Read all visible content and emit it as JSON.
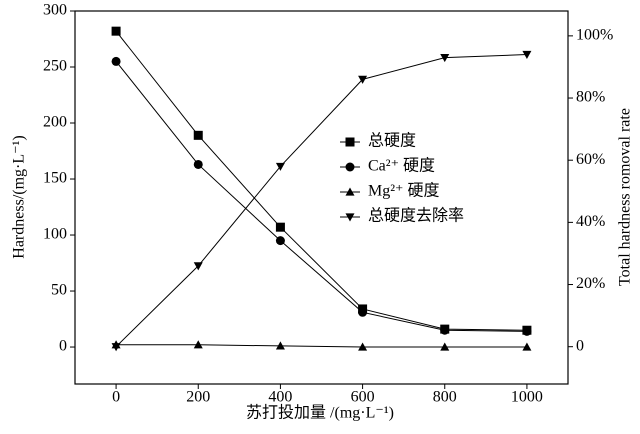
{
  "chart_data": {
    "type": "line",
    "x_label": "苏打投加量 /(mg·L⁻¹)",
    "y_label": "Hardness/(mg·L⁻¹)",
    "y2_label": "Total hardness romoval rate",
    "x": [
      0,
      200,
      400,
      600,
      800,
      1000
    ],
    "xlim": [
      -100,
      1100
    ],
    "xticks": [
      0,
      200,
      400,
      600,
      800,
      1000
    ],
    "ylim": [
      -33,
      300
    ],
    "yticks": [
      0,
      50,
      100,
      150,
      200,
      250,
      300
    ],
    "y2lim": [
      -12,
      108
    ],
    "y2ticks": [
      {
        "value": 0,
        "label": "0"
      },
      {
        "value": 20,
        "label": "20%"
      },
      {
        "value": 40,
        "label": "40%"
      },
      {
        "value": 60,
        "label": "60%"
      },
      {
        "value": 80,
        "label": "80%"
      },
      {
        "value": 100,
        "label": "100%"
      }
    ],
    "series": [
      {
        "name": "总硬度",
        "color": "#000000",
        "marker": "square",
        "values": [
          282,
          189,
          107,
          34,
          16,
          15
        ]
      },
      {
        "name": "Ca²⁺ 硬度",
        "color": "#000000",
        "marker": "circle",
        "values": [
          255,
          163,
          95,
          31,
          15,
          14
        ]
      },
      {
        "name": "Mg²⁺ 硬度",
        "color": "#000000",
        "marker": "triangle-up",
        "values": [
          2,
          2,
          1,
          0,
          0,
          0
        ]
      },
      {
        "name": "总硬度去除率",
        "color": "#000000",
        "marker": "triangle-down",
        "axis": "y2",
        "values": [
          0,
          26,
          58,
          86,
          93,
          94
        ]
      }
    ]
  }
}
